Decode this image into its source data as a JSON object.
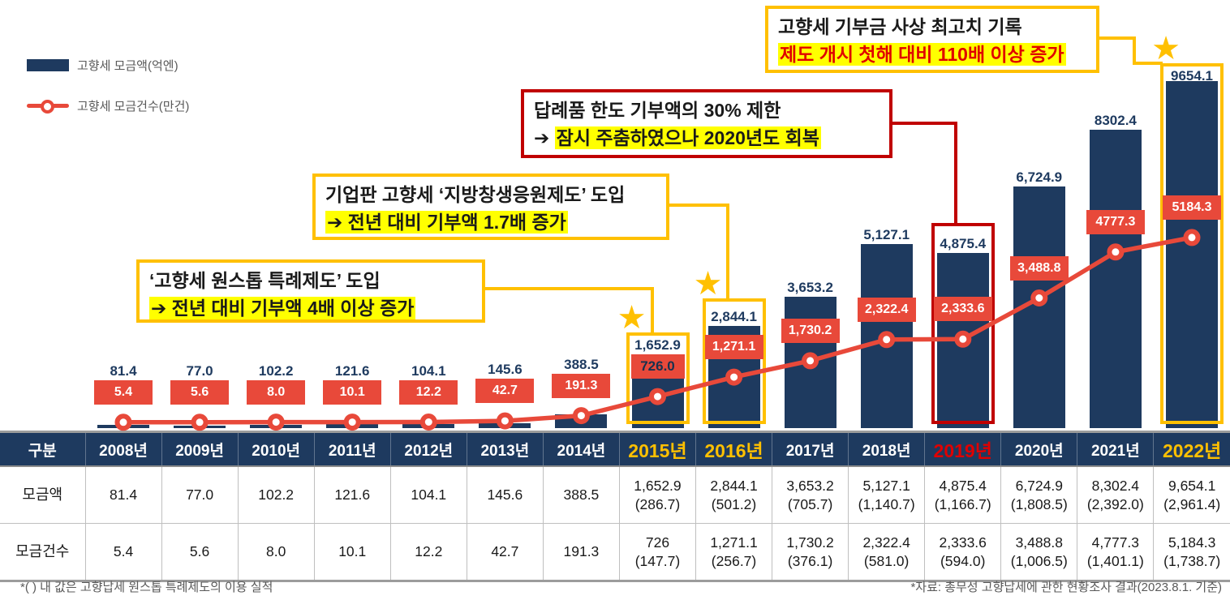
{
  "legend": {
    "bar_label": "고향세 모금액(억엔)",
    "line_label": "고향세 모금건수(만건)"
  },
  "icons": {
    "star": "★",
    "arrow": "➔"
  },
  "colors": {
    "navy": "#1E3A5F",
    "red": "#E8493A",
    "gold": "#FFC000",
    "dark_red": "#C00000",
    "highlight_yellow": "#FFFF00",
    "alert_red": "#E00000"
  },
  "annotations": {
    "record": {
      "line1": "고향세 기부금 사상 최고치 기록",
      "line2": "제도 개시 첫해 대비 110배 이상 증가"
    },
    "refund_limit": {
      "line1": "답례품 한도 기부액의 30% 제한",
      "arrow": "➔",
      "line2": "잠시 주춤하였으나 2020년도 회복"
    },
    "corporate": {
      "line1": "기업판 고향세 ‘지방창생응원제도’ 도입",
      "arrow": "➔",
      "line2": "전년 대비 기부액 1.7배 증가"
    },
    "onestop": {
      "line1": "‘고향세 원스톱 특례제도’ 도입",
      "arrow": "➔",
      "line2": "전년 대비 기부액 4배 이상 증가"
    }
  },
  "chart_data": {
    "type": "bar+line",
    "categories": [
      "2008년",
      "2009년",
      "2010년",
      "2011년",
      "2012년",
      "2013년",
      "2014년",
      "2015년",
      "2016년",
      "2017년",
      "2018년",
      "2019년",
      "2020년",
      "2021년",
      "2022년"
    ],
    "series": [
      {
        "name": "고향세 모금액(억엔)",
        "type": "bar",
        "values": [
          81.4,
          77.0,
          102.2,
          121.6,
          104.1,
          145.6,
          388.5,
          1652.9,
          2844.1,
          3653.2,
          5127.1,
          4875.4,
          6724.9,
          8302.4,
          9654.1
        ],
        "labels": [
          "81.4",
          "77.0",
          "102.2",
          "121.6",
          "104.1",
          "145.6",
          "388.5",
          "1,652.9",
          "2,844.1",
          "3,653.2",
          "5,127.1",
          "4,875.4",
          "6,724.9",
          "8302.4",
          "9654.1"
        ]
      },
      {
        "name": "고향세 모금건수(만건)",
        "type": "line",
        "values": [
          5.4,
          5.6,
          8.0,
          10.1,
          12.2,
          42.7,
          191.3,
          726.0,
          1271.1,
          1730.2,
          2322.4,
          2333.6,
          3488.8,
          4777.3,
          5184.3
        ],
        "labels": [
          "5.4",
          "5.6",
          "8.0",
          "10.1",
          "12.2",
          "42.7",
          "191.3",
          "726.0",
          "1,271.1",
          "1,730.2",
          "2,322.4",
          "2,333.6",
          "3,488.8",
          "4777.3",
          "5184.3"
        ],
        "dark_label_years": [
          "2015년"
        ]
      }
    ],
    "highlighted_years": [
      {
        "year": "2015년",
        "style": "gold",
        "star": true
      },
      {
        "year": "2016년",
        "style": "gold",
        "star": true
      },
      {
        "year": "2019년",
        "style": "red",
        "star": false
      },
      {
        "year": "2022년",
        "style": "gold",
        "star": true
      }
    ],
    "ylim_bar": [
      0,
      9654.1
    ],
    "grid": false,
    "legend_position": "top-left"
  },
  "table": {
    "corner": "구분",
    "row_headers": [
      "모금액",
      "모금건수"
    ],
    "columns": [
      {
        "year": "2008년",
        "style": "normal",
        "amount": "81.4",
        "amount_note": "",
        "count": "5.4",
        "count_note": ""
      },
      {
        "year": "2009년",
        "style": "normal",
        "amount": "77.0",
        "amount_note": "",
        "count": "5.6",
        "count_note": ""
      },
      {
        "year": "2010년",
        "style": "normal",
        "amount": "102.2",
        "amount_note": "",
        "count": "8.0",
        "count_note": ""
      },
      {
        "year": "2011년",
        "style": "normal",
        "amount": "121.6",
        "amount_note": "",
        "count": "10.1",
        "count_note": ""
      },
      {
        "year": "2012년",
        "style": "normal",
        "amount": "104.1",
        "amount_note": "",
        "count": "12.2",
        "count_note": ""
      },
      {
        "year": "2013년",
        "style": "normal",
        "amount": "145.6",
        "amount_note": "",
        "count": "42.7",
        "count_note": ""
      },
      {
        "year": "2014년",
        "style": "normal",
        "amount": "388.5",
        "amount_note": "",
        "count": "191.3",
        "count_note": ""
      },
      {
        "year": "2015년",
        "style": "gold",
        "amount": "1,652.9",
        "amount_note": "(286.7)",
        "count": "726",
        "count_note": "(147.7)"
      },
      {
        "year": "2016년",
        "style": "gold",
        "amount": "2,844.1",
        "amount_note": "(501.2)",
        "count": "1,271.1",
        "count_note": "(256.7)"
      },
      {
        "year": "2017년",
        "style": "normal",
        "amount": "3,653.2",
        "amount_note": "(705.7)",
        "count": "1,730.2",
        "count_note": "(376.1)"
      },
      {
        "year": "2018년",
        "style": "normal",
        "amount": "5,127.1",
        "amount_note": "(1,140.7)",
        "count": "2,322.4",
        "count_note": "(581.0)"
      },
      {
        "year": "2019년",
        "style": "red",
        "amount": "4,875.4",
        "amount_note": "(1,166.7)",
        "count": "2,333.6",
        "count_note": "(594.0)"
      },
      {
        "year": "2020년",
        "style": "normal",
        "amount": "6,724.9",
        "amount_note": "(1,808.5)",
        "count": "3,488.8",
        "count_note": "(1,006.5)"
      },
      {
        "year": "2021년",
        "style": "normal",
        "amount": "8,302.4",
        "amount_note": "(2,392.0)",
        "count": "4,777.3",
        "count_note": "(1,401.1)"
      },
      {
        "year": "2022년",
        "style": "gold",
        "amount": "9,654.1",
        "amount_note": "(2,961.4)",
        "count": "5,184.3",
        "count_note": "(1,738.7)"
      }
    ]
  },
  "footnotes": {
    "left": "*( ) 내 값은 고향납세 원스톱 특례제도의 이용 실적",
    "right": "*자료: 총무성 고향납세에 관한 현황조사 결과(2023.8.1. 기준)"
  }
}
